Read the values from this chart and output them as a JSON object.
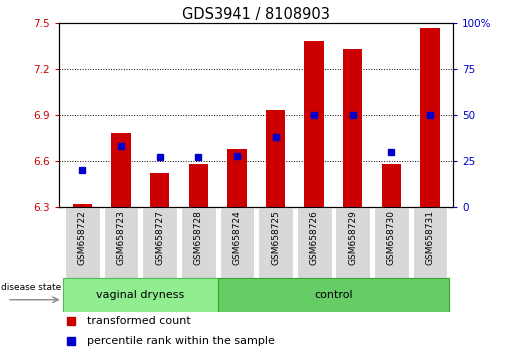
{
  "title": "GDS3941 / 8108903",
  "samples": [
    "GSM658722",
    "GSM658723",
    "GSM658727",
    "GSM658728",
    "GSM658724",
    "GSM658725",
    "GSM658726",
    "GSM658729",
    "GSM658730",
    "GSM658731"
  ],
  "red_values": [
    6.32,
    6.78,
    6.52,
    6.58,
    6.68,
    6.93,
    7.38,
    7.33,
    6.58,
    7.47
  ],
  "blue_percentiles": [
    20,
    33,
    27,
    27,
    28,
    38,
    50,
    50,
    30,
    50
  ],
  "group_boundary": 4,
  "group_labels": [
    "vaginal dryness",
    "control"
  ],
  "group_color_vd": "#90EE90",
  "group_color_ctrl": "#66CC66",
  "ylim_left": [
    6.3,
    7.5
  ],
  "ylim_right": [
    0,
    100
  ],
  "yticks_left": [
    6.3,
    6.6,
    6.9,
    7.2,
    7.5
  ],
  "yticks_right": [
    0,
    25,
    50,
    75,
    100
  ],
  "bar_color": "#CC0000",
  "dot_color": "#0000CC",
  "legend_red": "transformed count",
  "legend_blue": "percentile rank within the sample",
  "left_axis_color": "#CC0000",
  "right_axis_color": "#0000CC",
  "baseline": 6.3,
  "grid_lines": [
    6.6,
    6.9,
    7.2
  ],
  "bar_width": 0.5,
  "cell_color": "#d8d8d8",
  "cell_border_color": "#ffffff"
}
